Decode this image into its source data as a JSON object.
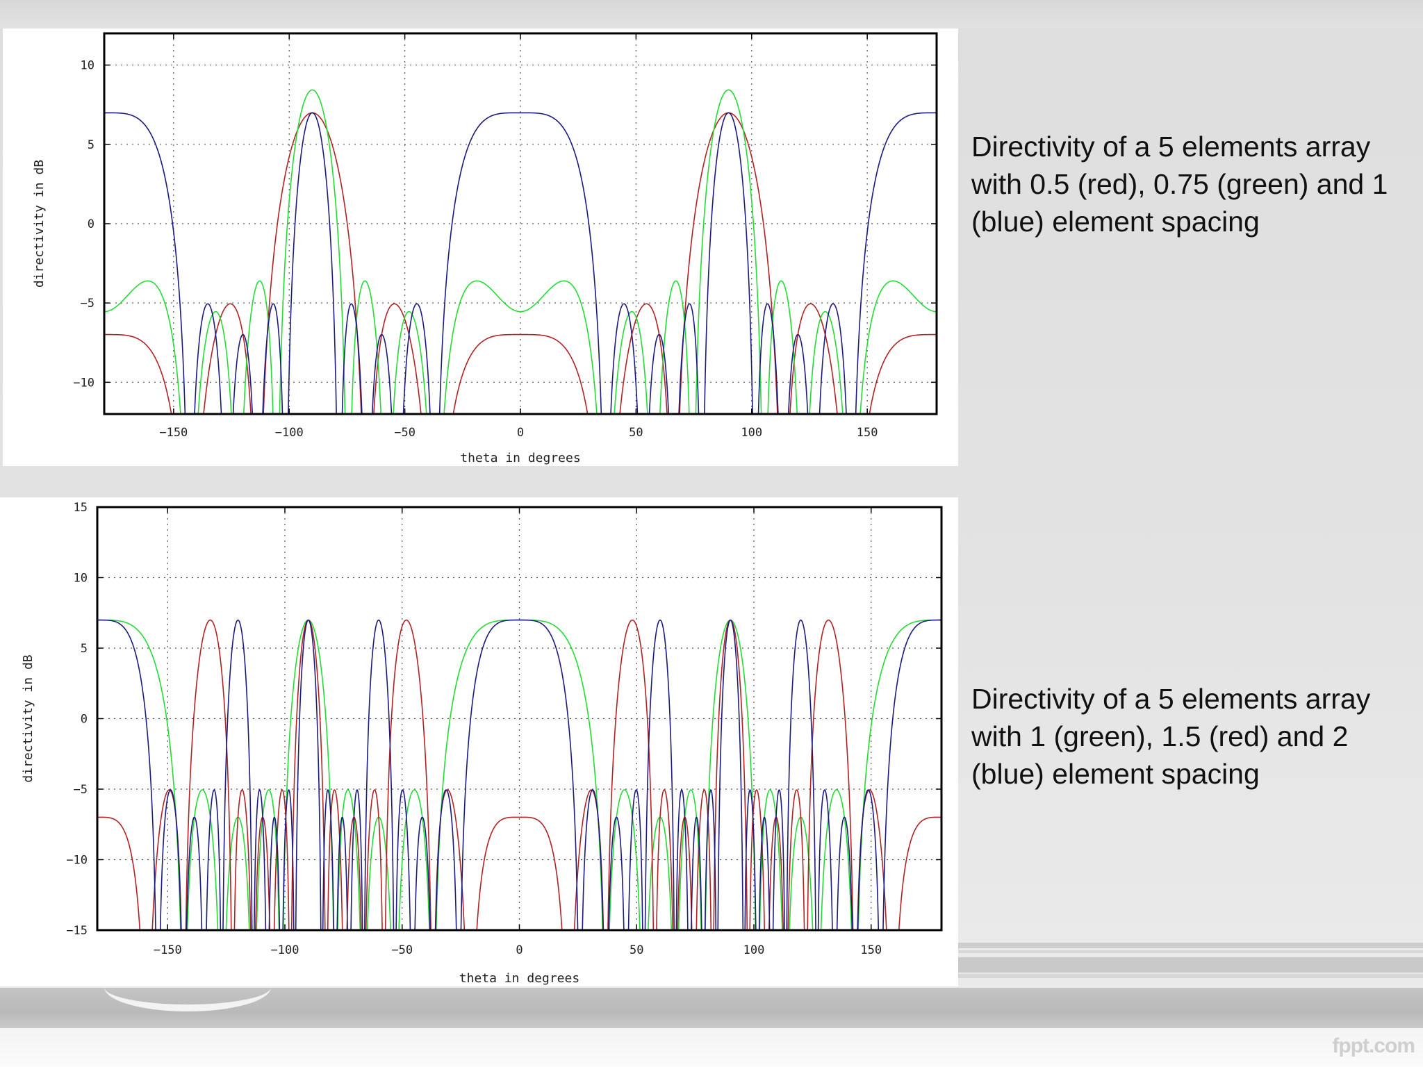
{
  "slide": {
    "watermark": "fppt.com"
  },
  "captions": [
    "Directivity of a 5 elements array with 0.5 (red), 0.75 (green) and 1 (blue) element spacing",
    "Directivity of a 5 elements array with 1 (green), 1.5 (red) and 2 (blue) element spacing"
  ],
  "colors": {
    "red": "#b22222",
    "green": "#22dd33",
    "blue": "#1a1a80"
  },
  "chart_data": [
    {
      "type": "line",
      "title": "",
      "xlabel": "theta in degrees",
      "ylabel": "directivity in dB",
      "xlim": [
        -180,
        180
      ],
      "ylim": [
        -12,
        12
      ],
      "xticks": [
        -150,
        -100,
        -50,
        0,
        50,
        100,
        150
      ],
      "xtick_labels": [
        "−150",
        "−100",
        "−50",
        "0",
        "50",
        "100",
        "150"
      ],
      "yticks": [
        10,
        5,
        0,
        -5,
        -10
      ],
      "ytick_labels": [
        "10",
        "5",
        "0",
        "−5",
        "−10"
      ],
      "grid": true,
      "legend": "none",
      "elements": 5,
      "series": [
        {
          "spacing": 0.5,
          "color": "red"
        },
        {
          "spacing": 0.75,
          "color": "green"
        },
        {
          "spacing": 1,
          "color": "blue"
        }
      ]
    },
    {
      "type": "line",
      "title": "",
      "xlabel": "theta in degrees",
      "ylabel": "directivity in dB",
      "xlim": [
        -180,
        180
      ],
      "ylim": [
        -15,
        15
      ],
      "xticks": [
        -150,
        -100,
        -50,
        0,
        50,
        100,
        150
      ],
      "xtick_labels": [
        "−150",
        "−100",
        "−50",
        "0",
        "50",
        "100",
        "150"
      ],
      "yticks": [
        15,
        10,
        5,
        0,
        -5,
        -10,
        -15
      ],
      "ytick_labels": [
        "15",
        "10",
        "5",
        "0",
        "−5",
        "−10",
        "−15"
      ],
      "grid": true,
      "legend": "none",
      "elements": 5,
      "series": [
        {
          "spacing": 1,
          "color": "green"
        },
        {
          "spacing": 1.5,
          "color": "red"
        },
        {
          "spacing": 2,
          "color": "blue"
        }
      ]
    }
  ]
}
